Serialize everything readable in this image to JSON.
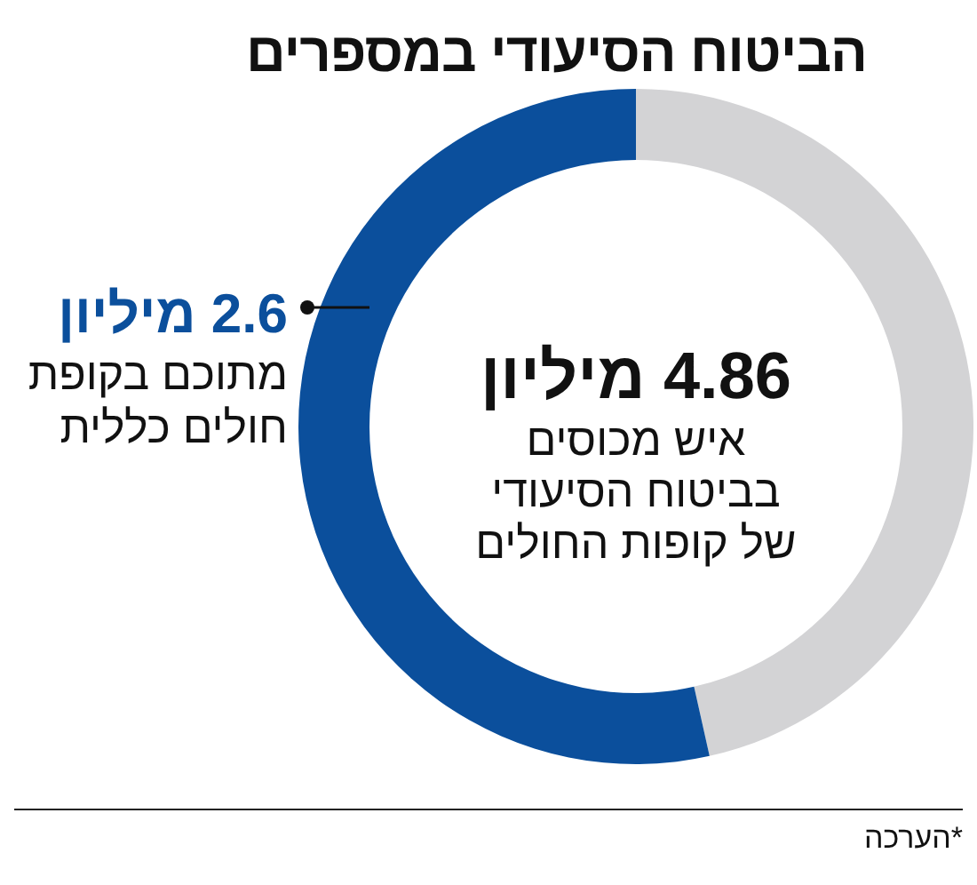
{
  "chart_data": {
    "type": "donut",
    "title": "הביטוח הסיעודי במספרים",
    "categories": [
      null,
      "מתוכם בקופת\nחולים כללית"
    ],
    "values": [
      2.26,
      2.6
    ],
    "colors": [
      "#d3d3d5",
      "#0b4f9c"
    ],
    "value_labels": [
      null,
      "2.6 מיליון"
    ],
    "annotations": [
      "4.86 מיליון\nאיש מכוסים\nבביטוח הסיעודי\nשל קופות החולים",
      "*הערכה"
    ]
  }
}
